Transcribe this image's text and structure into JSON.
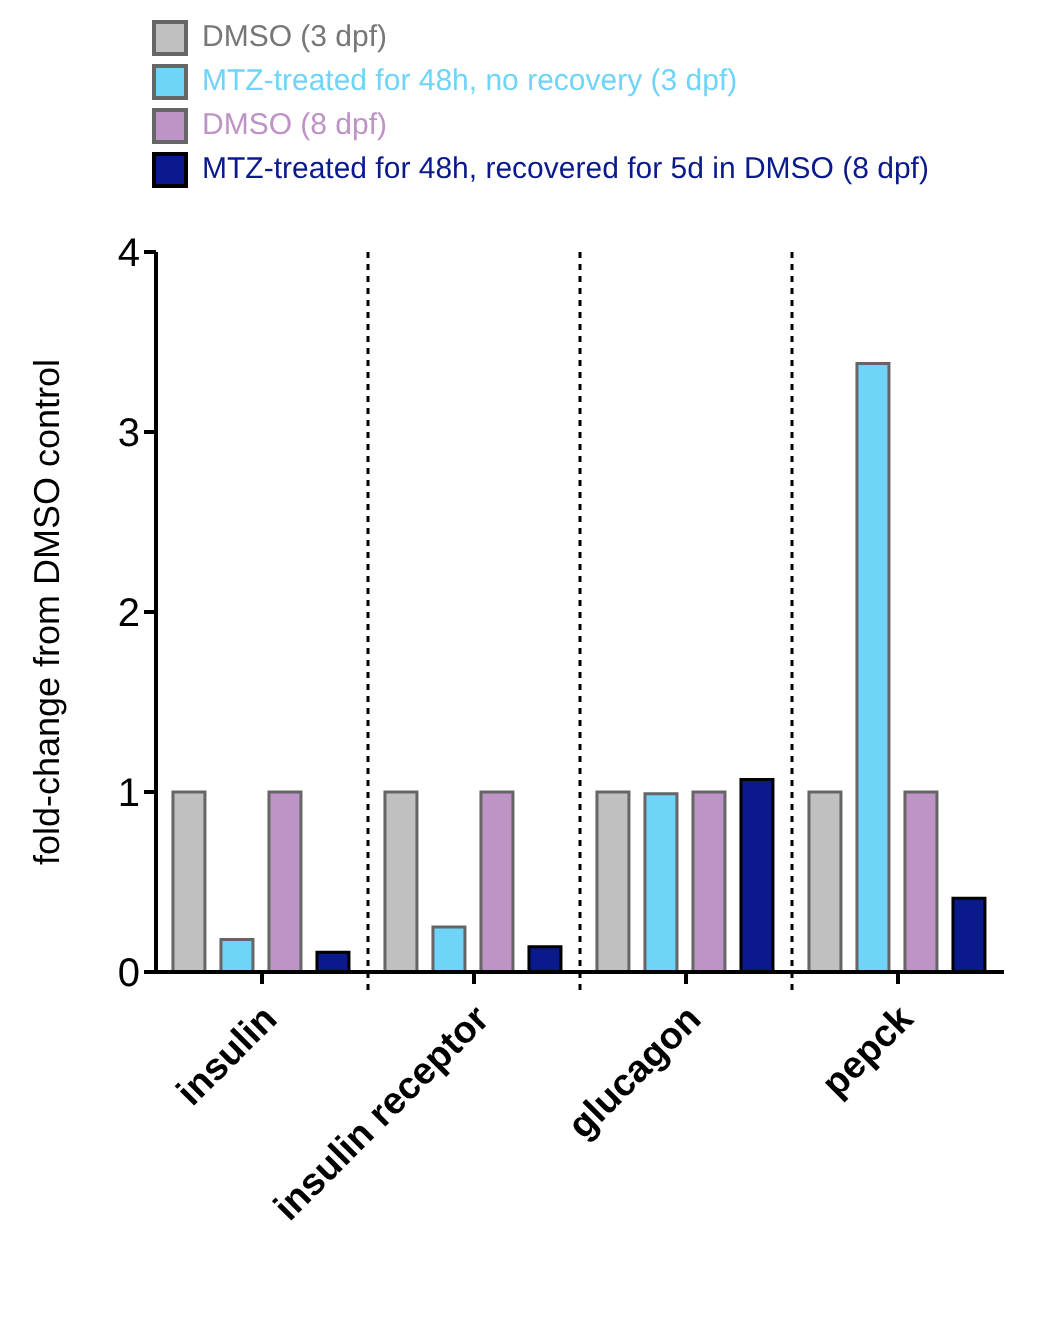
{
  "chart_data": {
    "type": "bar",
    "ylabel": "fold-change from DMSO control",
    "categories": [
      "insulin",
      "insulin receptor",
      "glucagon",
      "pepck"
    ],
    "series": [
      {
        "name": "DMSO (3 dpf)",
        "color": "#c0c0c0",
        "values": [
          1,
          1,
          1,
          1
        ]
      },
      {
        "name": "MTZ-treated for 48h, no recovery (3 dpf)",
        "color": "#70d4f8",
        "values": [
          0.18,
          0.25,
          0.99,
          3.38
        ]
      },
      {
        "name": "DMSO (8 dpf)",
        "color": "#be93c5",
        "values": [
          1,
          1,
          1,
          1
        ]
      },
      {
        "name": "MTZ-treated for 48h, recovered for 5d in DMSO (8 dpf)",
        "color": "#0a1a8c",
        "values": [
          0.11,
          0.14,
          1.07,
          0.41
        ]
      }
    ],
    "ylim": [
      0,
      4
    ],
    "yticks": [
      0,
      1,
      2,
      3,
      4
    ],
    "legend": "top"
  }
}
